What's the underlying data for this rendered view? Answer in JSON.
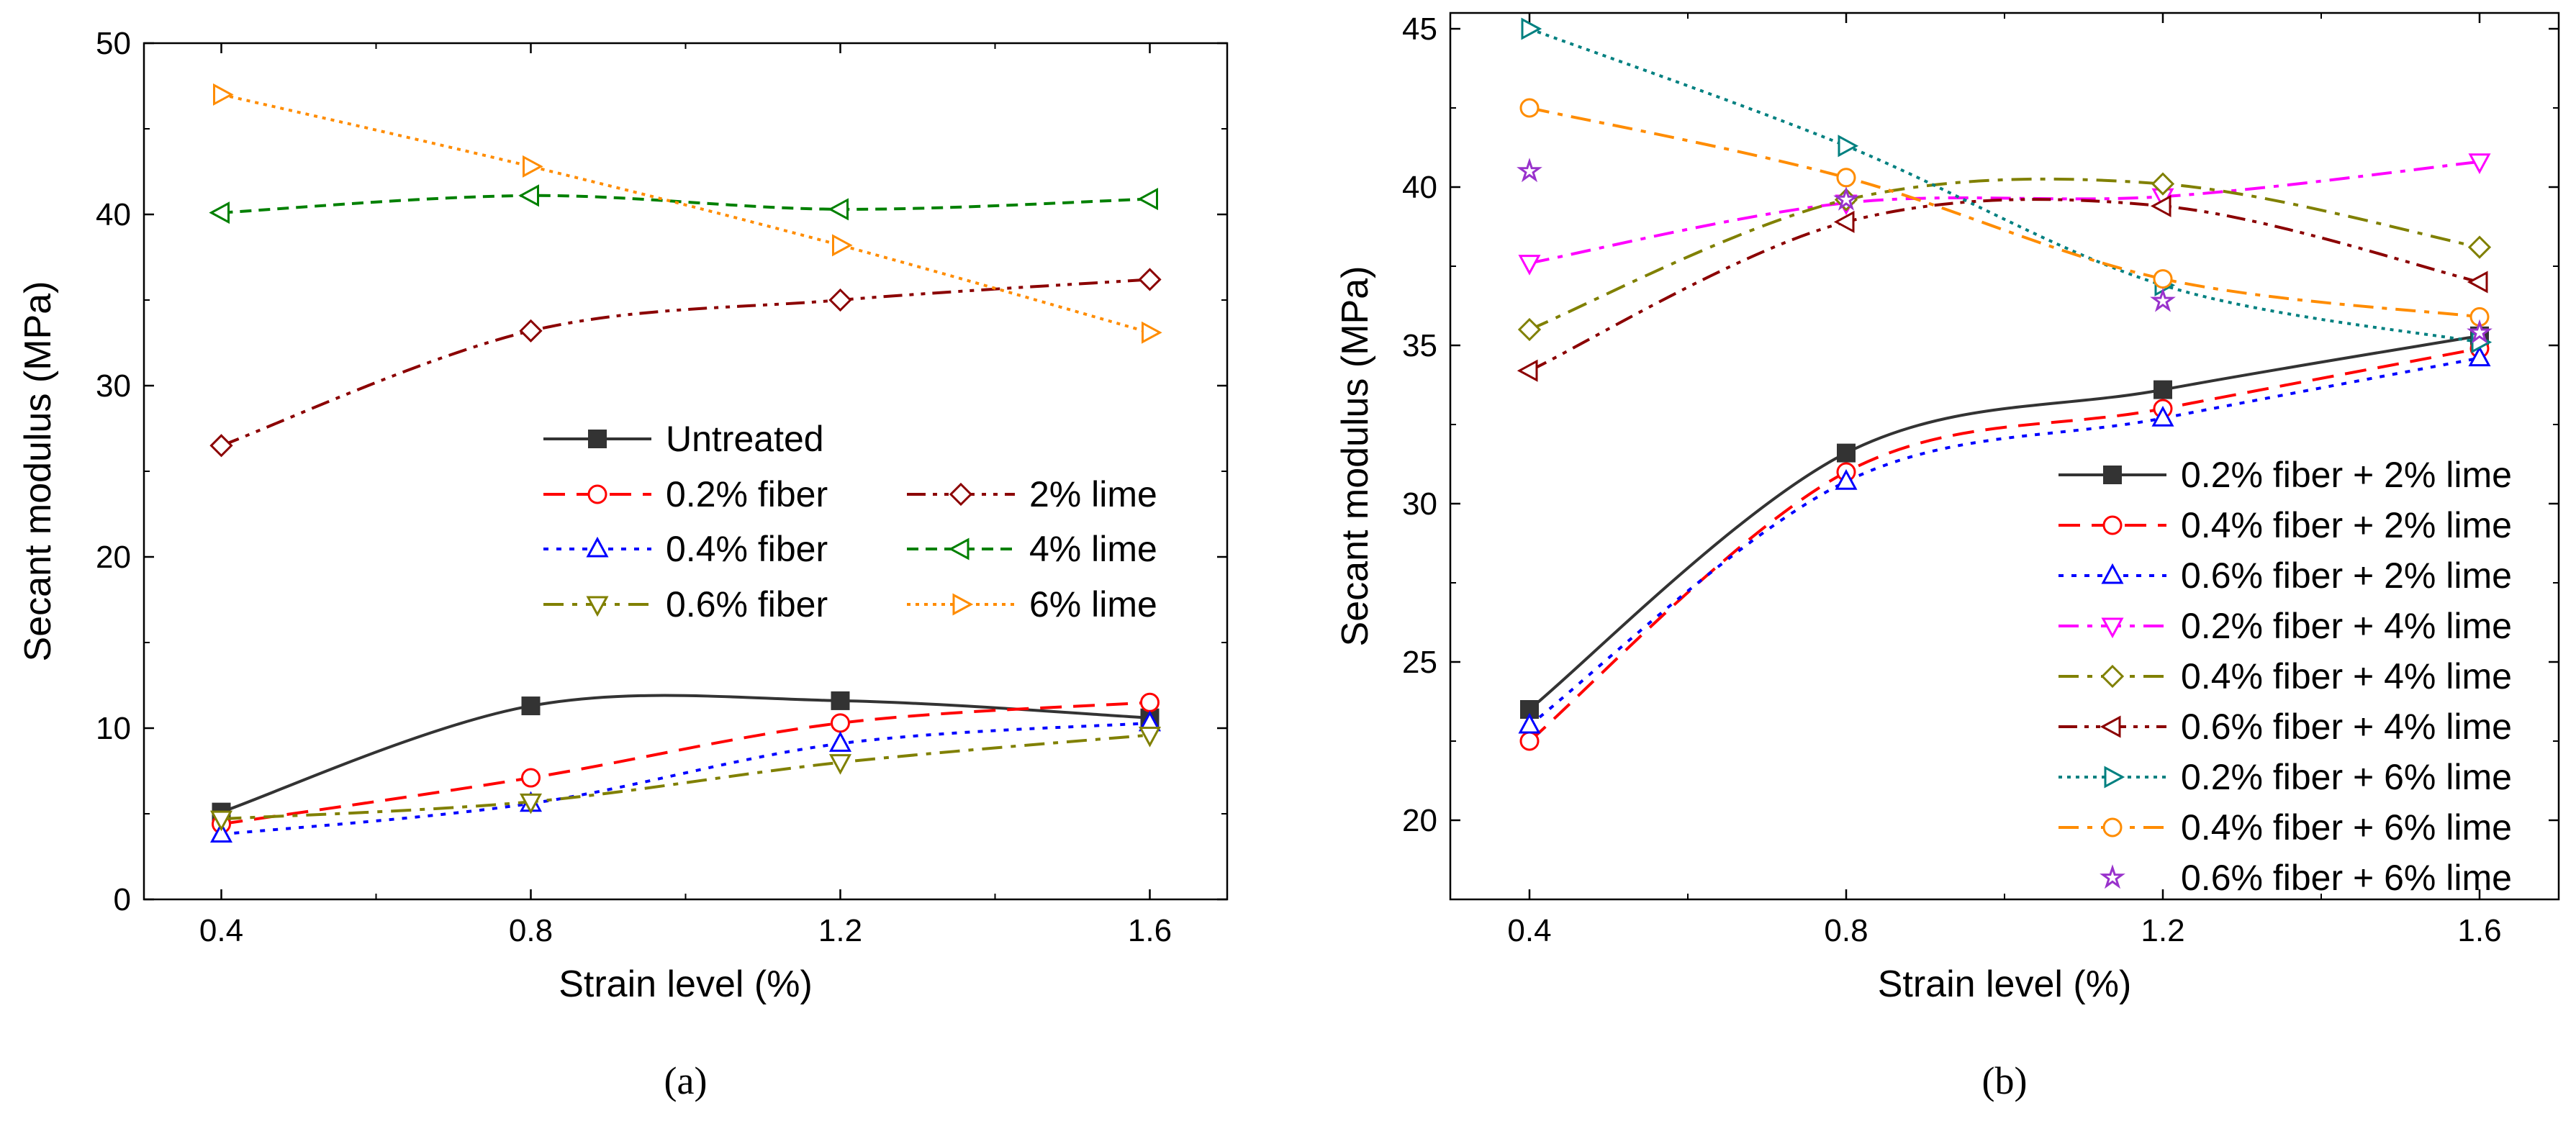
{
  "chart_data": [
    {
      "type": "line",
      "caption": "(a)",
      "xlabel": "Strain level (%)",
      "ylabel": "Secant modulus (MPa)",
      "x": [
        0.4,
        0.8,
        1.2,
        1.6
      ],
      "xticks": [
        "0.4",
        "0.8",
        "1.2",
        "1.6"
      ],
      "xlim": [
        0.3,
        1.7
      ],
      "ylim": [
        0,
        50
      ],
      "yticks": [
        "0",
        "10",
        "20",
        "30",
        "40",
        "50"
      ],
      "legend_position": "center-right",
      "series": [
        {
          "name": "Untreated",
          "values": [
            5.1,
            11.3,
            11.6,
            10.6
          ],
          "color": "#333333",
          "marker": "square-filled",
          "dash": "solid"
        },
        {
          "name": "0.2% fiber",
          "values": [
            4.4,
            7.1,
            10.3,
            11.5
          ],
          "color": "#ff0000",
          "marker": "circle",
          "dash": "dash"
        },
        {
          "name": "0.4% fiber",
          "values": [
            3.8,
            5.6,
            9.1,
            10.3
          ],
          "color": "#0000ff",
          "marker": "triangle-up",
          "dash": "dot"
        },
        {
          "name": "0.6% fiber",
          "values": [
            4.7,
            5.7,
            8.0,
            9.6
          ],
          "color": "#808000",
          "marker": "triangle-down",
          "dash": "dashdot"
        },
        {
          "name": "2% lime",
          "values": [
            26.5,
            33.2,
            35.0,
            36.2
          ],
          "color": "#8b0000",
          "marker": "diamond",
          "dash": "dashdotdot"
        },
        {
          "name": "4% lime",
          "values": [
            40.1,
            41.1,
            40.3,
            40.9
          ],
          "color": "#008000",
          "marker": "triangle-left",
          "dash": "shortdash"
        },
        {
          "name": "6% lime",
          "values": [
            47.0,
            42.8,
            38.2,
            33.1
          ],
          "color": "#ff8c00",
          "marker": "triangle-right",
          "dash": "shortdot"
        }
      ]
    },
    {
      "type": "line",
      "caption": "(b)",
      "xlabel": "Strain level (%)",
      "ylabel": "Secant modulus (MPa)",
      "x": [
        0.4,
        0.8,
        1.2,
        1.6
      ],
      "xticks": [
        "0.4",
        "0.8",
        "1.2",
        "1.6"
      ],
      "xlim": [
        0.3,
        1.7
      ],
      "ylim": [
        17.5,
        45.5
      ],
      "yticks": [
        "20",
        "25",
        "30",
        "35",
        "40",
        "45"
      ],
      "legend_position": "bottom-right",
      "series": [
        {
          "name": "0.2% fiber + 2% lime",
          "values": [
            23.5,
            31.6,
            33.6,
            35.3
          ],
          "color": "#333333",
          "marker": "square-filled",
          "dash": "solid"
        },
        {
          "name": "0.4% fiber + 2% lime",
          "values": [
            22.5,
            31.0,
            33.0,
            34.9
          ],
          "color": "#ff0000",
          "marker": "circle",
          "dash": "dash"
        },
        {
          "name": "0.6% fiber + 2% lime",
          "values": [
            23.0,
            30.7,
            32.7,
            34.6
          ],
          "color": "#0000ff",
          "marker": "triangle-up",
          "dash": "dot"
        },
        {
          "name": "0.2% fiber + 4% lime",
          "values": [
            37.6,
            39.5,
            39.7,
            40.8
          ],
          "color": "#ff00ff",
          "marker": "triangle-down",
          "dash": "dashdot"
        },
        {
          "name": "0.4% fiber + 4% lime",
          "values": [
            35.5,
            39.6,
            40.1,
            38.1
          ],
          "color": "#808000",
          "marker": "diamond",
          "dash": "dashdot"
        },
        {
          "name": "0.6% fiber + 4% lime",
          "values": [
            34.2,
            38.9,
            39.4,
            37.0
          ],
          "color": "#8b0000",
          "marker": "triangle-left",
          "dash": "dashdotdot"
        },
        {
          "name": "0.2% fiber + 6% lime",
          "values": [
            45.0,
            41.3,
            36.9,
            35.1
          ],
          "color": "#008080",
          "marker": "triangle-right",
          "dash": "shortdot"
        },
        {
          "name": "0.4% fiber + 6% lime",
          "values": [
            42.5,
            40.3,
            37.1,
            35.9
          ],
          "color": "#ff8c00",
          "marker": "circle",
          "dash": "dashdot"
        },
        {
          "name": "0.6% fiber + 6% lime",
          "values": [
            40.5,
            39.6,
            36.4,
            35.4
          ],
          "color": "#9932cc",
          "marker": "star",
          "dash": "none"
        }
      ]
    }
  ]
}
